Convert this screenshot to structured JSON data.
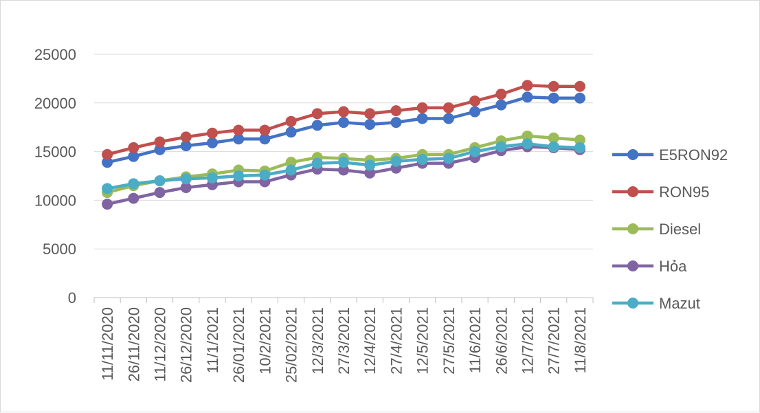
{
  "chart_data": {
    "type": "line",
    "title": "",
    "xlabel": "",
    "ylabel": "",
    "ylim": [
      0,
      25000
    ],
    "yticks": [
      0,
      5000,
      10000,
      15000,
      20000,
      25000
    ],
    "grid": "horizontal",
    "legend_position": "right",
    "categories": [
      "11/11/2020",
      "26/11/2020",
      "11/12/2020",
      "26/12/2020",
      "11/1/2021",
      "26/01/2021",
      "10/2/2021",
      "25/02/2021",
      "12/3/2021",
      "27/3/2021",
      "12/4/2021",
      "27/4/2021",
      "12/5/2021",
      "27/5/2021",
      "11/6/2021",
      "26/6/2021",
      "12/7/2021",
      "27/7/2021",
      "11/8/2021"
    ],
    "series": [
      {
        "name": "E5RON92",
        "color": "#4472c4",
        "values": [
          13900,
          14500,
          15200,
          15600,
          15900,
          16300,
          16300,
          17000,
          17700,
          18000,
          17800,
          18000,
          18400,
          18400,
          19100,
          19800,
          20600,
          20500,
          20500
        ]
      },
      {
        "name": "RON95",
        "color": "#c0504d",
        "values": [
          14700,
          15400,
          16000,
          16500,
          16900,
          17200,
          17200,
          18100,
          18900,
          19100,
          18900,
          19200,
          19500,
          19500,
          20200,
          20900,
          21800,
          21700,
          21700
        ]
      },
      {
        "name": "Diesel",
        "color": "#9bbb59",
        "values": [
          10800,
          11500,
          12000,
          12400,
          12700,
          13100,
          13000,
          13900,
          14400,
          14300,
          14100,
          14300,
          14700,
          14700,
          15400,
          16100,
          16600,
          16400,
          16200
        ]
      },
      {
        "name": "Hỏa",
        "color": "#8064a2",
        "values": [
          9600,
          10200,
          10800,
          11300,
          11600,
          11900,
          11900,
          12600,
          13200,
          13100,
          12800,
          13300,
          13800,
          13800,
          14400,
          15100,
          15500,
          15400,
          15200
        ]
      },
      {
        "name": "Mazut",
        "color": "#4bacc6",
        "values": [
          11200,
          11700,
          12000,
          12200,
          12300,
          12500,
          12600,
          13100,
          13800,
          13900,
          13600,
          14000,
          14200,
          14300,
          15000,
          15500,
          15800,
          15500,
          15400
        ]
      }
    ]
  }
}
